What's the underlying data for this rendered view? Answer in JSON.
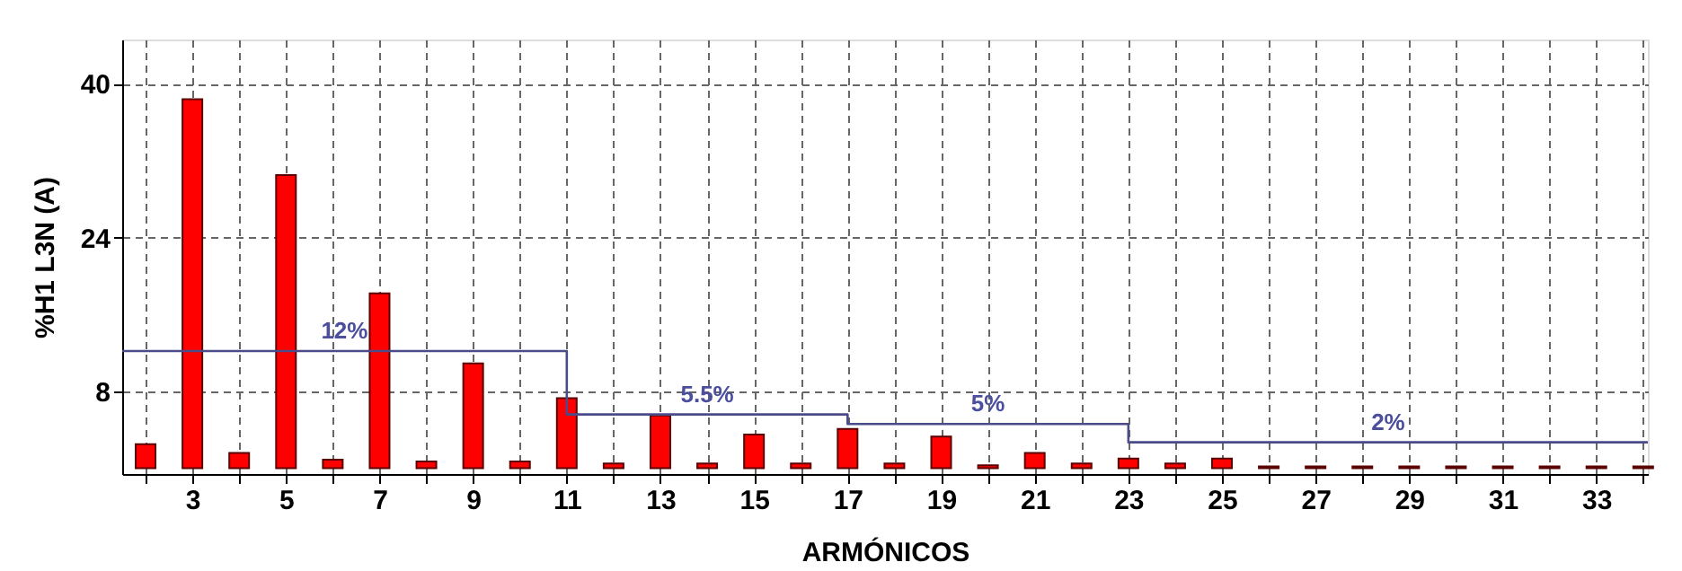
{
  "chart_data": {
    "type": "bar",
    "xlabel": "ARMÓNICOS",
    "ylabel": "%H1 L3N (A)",
    "x": [
      2,
      3,
      4,
      5,
      6,
      7,
      8,
      9,
      10,
      11,
      12,
      13,
      14,
      15,
      16,
      17,
      18,
      19,
      20,
      21,
      22,
      23,
      24,
      25,
      26,
      27,
      28,
      29,
      30,
      31,
      32,
      33,
      34
    ],
    "series": [
      {
        "color": "#ff0000",
        "values": [
          2.5,
          38.4,
          1.6,
          30.5,
          0.9,
          18.2,
          0.7,
          10.9,
          0.7,
          7.3,
          0.5,
          5.5,
          0.5,
          3.5,
          0.5,
          4.1,
          0.5,
          3.3,
          0.3,
          1.6,
          0.5,
          1.0,
          0.5,
          1.0,
          0.2,
          0.2,
          0.2,
          0.2,
          0.2,
          0.2,
          0.2,
          0.2,
          0.2
        ]
      },
      {
        "type": "line",
        "color": "#4b4b8a",
        "x": [
          1.5,
          11,
          11,
          17,
          17,
          23,
          23,
          34.1
        ],
        "values": [
          12.2,
          12.2,
          5.6,
          5.6,
          4.6,
          4.6,
          2.7,
          2.7
        ]
      }
    ],
    "xlim": [
      1.5,
      34.1
    ],
    "xticks": [
      {
        "value": 2,
        "label": null
      },
      3,
      {
        "value": 4,
        "label": null
      },
      5,
      {
        "value": 6,
        "label": null
      },
      7,
      {
        "value": 8,
        "label": null
      },
      9,
      {
        "value": 10,
        "label": null
      },
      11,
      {
        "value": 12,
        "label": null
      },
      13,
      {
        "value": 14,
        "label": null
      },
      15,
      {
        "value": 16,
        "label": null
      },
      17,
      {
        "value": 18,
        "label": null
      },
      19,
      {
        "value": 20,
        "label": null
      },
      21,
      {
        "value": 22,
        "label": null
      },
      23,
      {
        "value": 24,
        "label": null
      },
      25,
      {
        "value": 26,
        "label": null
      },
      27,
      {
        "value": 28,
        "label": null
      },
      29,
      {
        "value": 30,
        "label": null
      },
      31,
      {
        "value": 32,
        "label": null
      },
      33,
      {
        "value": 34,
        "label": null
      }
    ],
    "ylim": [
      -0.6,
      44.6
    ],
    "yticks": [
      8,
      24,
      40
    ],
    "grid": true,
    "annotations": [
      "12%",
      "5.5%",
      "5%",
      "2%"
    ]
  }
}
